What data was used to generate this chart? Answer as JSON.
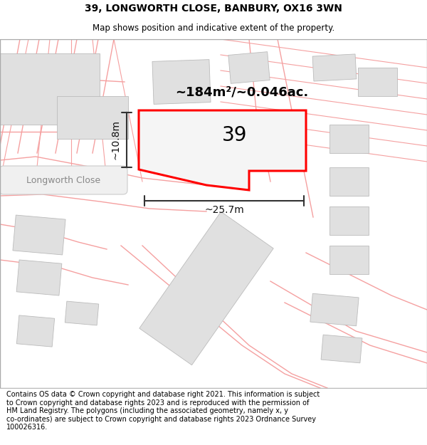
{
  "title": "39, LONGWORTH CLOSE, BANBURY, OX16 3WN",
  "subtitle": "Map shows position and indicative extent of the property.",
  "footer": "Contains OS data © Crown copyright and database right 2021. This information is subject\nto Crown copyright and database rights 2023 and is reproduced with the permission of\nHM Land Registry. The polygons (including the associated geometry, namely x, y\nco-ordinates) are subject to Crown copyright and database rights 2023 Ordnance Survey\n100026316.",
  "area_label": "~184m²/~0.046ac.",
  "width_label": "~25.7m",
  "height_label": "~10.8m",
  "plot_number": "39",
  "road_label": "Longworth Close",
  "bg_color": "#ffffff",
  "map_bg": "#ffffff",
  "plot_fill": "#f5f5f5",
  "plot_border": "#ff0000",
  "building_fill": "#e0e0e0",
  "road_line_color": "#f5a0a0",
  "dim_line_color": "#333333",
  "title_fontsize": 10,
  "subtitle_fontsize": 8.5,
  "footer_fontsize": 7,
  "plot_number_fontsize": 20,
  "road_label_fontsize": 9,
  "area_label_fontsize": 13
}
